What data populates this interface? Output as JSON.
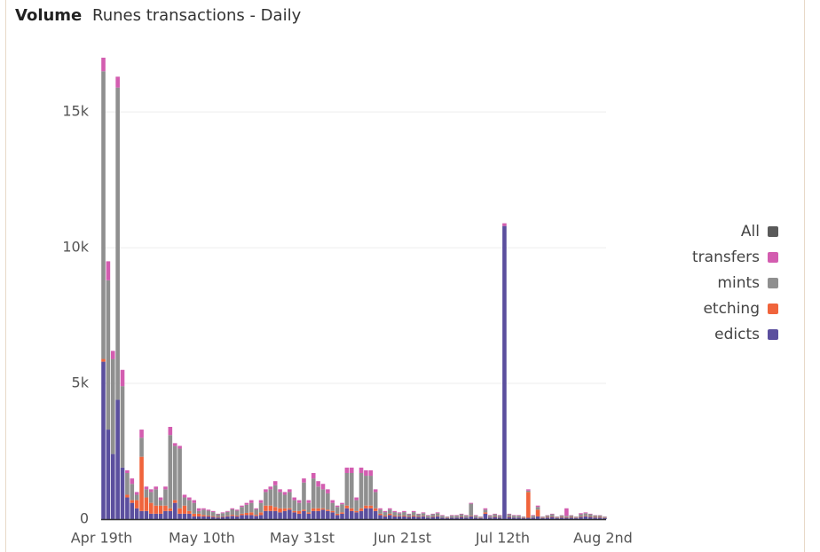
{
  "chart_data": {
    "type": "stacked_bar",
    "title": "Volume",
    "subtitle": "Runes transactions - Daily",
    "categories": [
      "Apr 19th",
      null,
      null,
      null,
      null,
      null,
      null,
      null,
      null,
      null,
      null,
      null,
      null,
      null,
      null,
      null,
      null,
      null,
      null,
      null,
      null,
      "May 10th",
      null,
      null,
      null,
      null,
      null,
      null,
      null,
      null,
      null,
      null,
      null,
      null,
      null,
      null,
      null,
      null,
      null,
      null,
      null,
      null,
      "May 31st",
      null,
      null,
      null,
      null,
      null,
      null,
      null,
      null,
      null,
      null,
      null,
      null,
      null,
      null,
      null,
      null,
      null,
      null,
      null,
      null,
      "Jun 21st",
      null,
      null,
      null,
      null,
      null,
      null,
      null,
      null,
      null,
      null,
      null,
      null,
      null,
      null,
      null,
      null,
      null,
      null,
      null,
      null,
      "Jul 12th",
      null,
      null,
      null,
      null,
      null,
      null,
      null,
      null,
      null,
      null,
      null,
      null,
      null,
      null,
      null,
      null,
      null,
      null,
      null,
      null,
      "Aug 2nd"
    ],
    "series": [
      {
        "name": "edicts",
        "color": "#5b4f9e",
        "values": [
          5800,
          3300,
          2400,
          4400,
          1900,
          800,
          600,
          400,
          300,
          300,
          200,
          200,
          200,
          300,
          300,
          600,
          200,
          200,
          200,
          100,
          100,
          100,
          100,
          80,
          60,
          80,
          100,
          120,
          100,
          150,
          150,
          150,
          120,
          150,
          300,
          300,
          300,
          250,
          300,
          350,
          250,
          200,
          300,
          200,
          300,
          300,
          350,
          300,
          250,
          150,
          200,
          400,
          300,
          250,
          300,
          400,
          400,
          300,
          150,
          100,
          150,
          100,
          100,
          100,
          80,
          100,
          80,
          100,
          60,
          80,
          100,
          60,
          40,
          60,
          60,
          80,
          60,
          100,
          60,
          40,
          200,
          60,
          80,
          60,
          10800,
          80,
          60,
          60,
          40,
          50,
          60,
          100,
          40,
          60,
          80,
          40,
          60,
          50,
          60,
          40,
          80,
          100,
          80,
          60,
          60,
          40
        ]
      },
      {
        "name": "etching",
        "color": "#f0643c",
        "values": [
          100,
          0,
          0,
          0,
          0,
          100,
          100,
          300,
          2000,
          500,
          400,
          300,
          300,
          200,
          100,
          100,
          200,
          300,
          100,
          100,
          100,
          50,
          30,
          30,
          20,
          20,
          20,
          40,
          30,
          50,
          80,
          100,
          40,
          100,
          200,
          200,
          150,
          150,
          100,
          50,
          50,
          100,
          50,
          50,
          100,
          100,
          50,
          50,
          50,
          50,
          50,
          100,
          100,
          50,
          100,
          100,
          100,
          100,
          50,
          30,
          50,
          30,
          20,
          30,
          20,
          30,
          20,
          20,
          10,
          20,
          20,
          10,
          10,
          10,
          10,
          20,
          10,
          20,
          10,
          10,
          50,
          10,
          20,
          10,
          0,
          20,
          10,
          10,
          10,
          950,
          10,
          250,
          10,
          20,
          20,
          10,
          20,
          20,
          20,
          10,
          20,
          20,
          20,
          20,
          20,
          10
        ]
      },
      {
        "name": "mints",
        "color": "#8f8f8f",
        "values": [
          10600,
          5500,
          3500,
          11500,
          3000,
          800,
          600,
          200,
          700,
          300,
          400,
          600,
          200,
          600,
          2700,
          2000,
          2200,
          300,
          400,
          400,
          100,
          200,
          180,
          150,
          100,
          120,
          150,
          200,
          180,
          250,
          300,
          350,
          200,
          350,
          500,
          600,
          800,
          600,
          500,
          600,
          400,
          300,
          1000,
          350,
          1100,
          800,
          700,
          600,
          300,
          250,
          300,
          1200,
          1300,
          400,
          1300,
          1100,
          1100,
          600,
          150,
          130,
          150,
          130,
          100,
          130,
          80,
          130,
          80,
          100,
          60,
          80,
          100,
          60,
          40,
          60,
          60,
          80,
          60,
          450,
          60,
          40,
          100,
          60,
          80,
          60,
          0,
          80,
          60,
          60,
          40,
          50,
          60,
          100,
          40,
          60,
          80,
          40,
          60,
          50,
          60,
          40,
          80,
          100,
          80,
          60,
          60,
          40
        ]
      },
      {
        "name": "transfers",
        "color": "#d35db0",
        "values": [
          500,
          700,
          300,
          400,
          600,
          100,
          200,
          100,
          300,
          100,
          100,
          100,
          100,
          100,
          300,
          100,
          100,
          100,
          100,
          100,
          100,
          50,
          40,
          40,
          20,
          30,
          30,
          40,
          40,
          50,
          70,
          100,
          40,
          100,
          100,
          100,
          150,
          100,
          100,
          100,
          100,
          100,
          150,
          100,
          200,
          200,
          200,
          150,
          100,
          50,
          50,
          200,
          200,
          100,
          200,
          200,
          200,
          100,
          50,
          40,
          50,
          40,
          30,
          40,
          20,
          40,
          20,
          30,
          20,
          20,
          30,
          20,
          10,
          20,
          20,
          20,
          20,
          30,
          20,
          10,
          50,
          20,
          20,
          20,
          100,
          20,
          20,
          20,
          10,
          50,
          20,
          50,
          10,
          10,
          20,
          10,
          10,
          280,
          10,
          10,
          40,
          30,
          20,
          10,
          10,
          10
        ]
      }
    ],
    "legend_all": {
      "name": "All",
      "color": "#5a5a5a"
    },
    "ylim": [
      0,
      17000
    ],
    "yticks": [
      0,
      {
        "value": 5000,
        "label": "5k"
      },
      {
        "value": 10000,
        "label": "10k"
      },
      {
        "value": 15000,
        "label": "15k"
      }
    ],
    "grid": true,
    "legend_position": "right"
  }
}
